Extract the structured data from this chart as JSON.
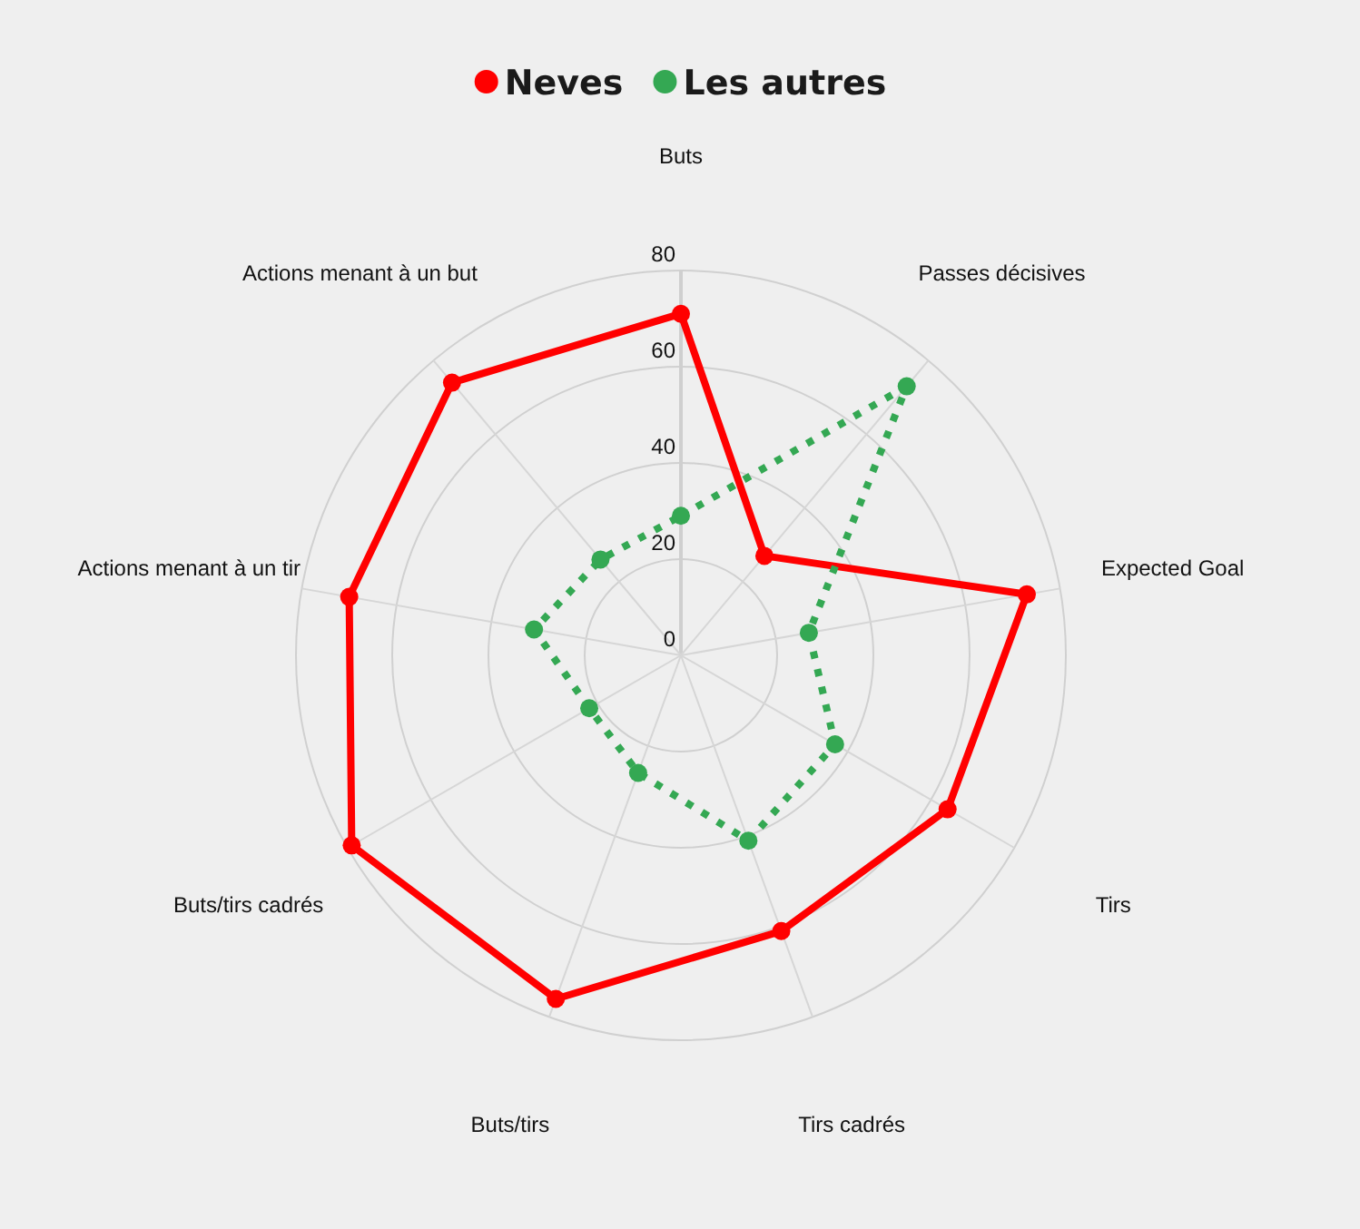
{
  "chart_data": {
    "type": "radar",
    "categories": [
      "Buts",
      "Passes décisives",
      "Expected Goal",
      "Tirs",
      "Tirs cadrés",
      "Buts/tirs",
      "Buts/tirs cadrés",
      "Actions menant à un tir",
      "Actions menant à un but"
    ],
    "series": [
      {
        "name": "Neves",
        "color": "#ff0000",
        "line_style": "solid",
        "values": [
          71,
          27,
          73,
          64,
          61,
          76,
          79,
          70,
          74
        ]
      },
      {
        "name": "Les autres",
        "color": "#34a853",
        "line_style": "dotted",
        "values": [
          29,
          73,
          27,
          37,
          41,
          26,
          22,
          31,
          26
        ]
      }
    ],
    "ylim": [
      0,
      80
    ],
    "yticks": [
      0,
      20,
      40,
      60,
      80
    ],
    "grid": true,
    "legend": "top",
    "marker": "circle"
  }
}
